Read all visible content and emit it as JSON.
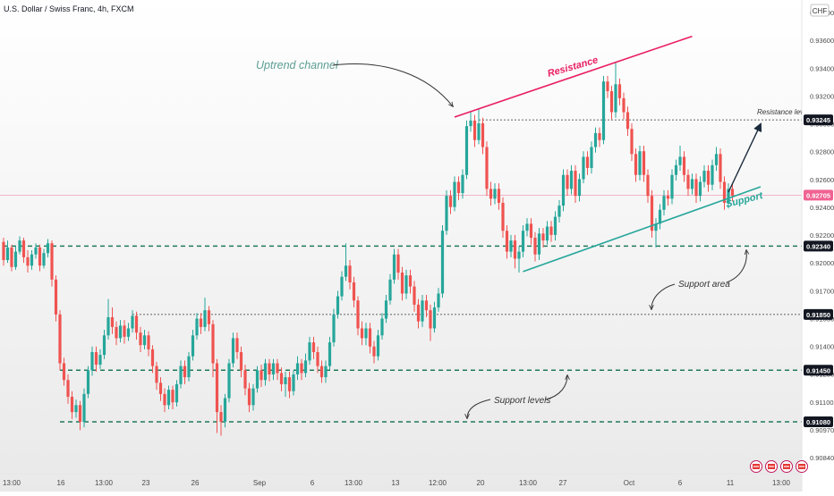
{
  "header": {
    "symbol": "U.S. Dollar / Swiss Franc, 4h, FXCM"
  },
  "currency_badge": "CHF",
  "colors": {
    "up": "#26a69a",
    "down": "#ef5350",
    "resistance": "#e91e63",
    "support": "#26a69a",
    "annotation": "#5b9e93",
    "level_line": "#1f7a5a",
    "last_price": "#f06292",
    "background_top": "#ffffff",
    "background_bottom": "#e9e9e9"
  },
  "toolbar_icons": [
    "flag-icon",
    "flag-icon",
    "flag-icon",
    "flag-icon"
  ],
  "chart_data": {
    "type": "candlestick",
    "symbol": "USDCHF",
    "timeframe": "4h",
    "ylim": [
      0.9076,
      0.9404
    ],
    "y_ticks": [
      "0.93800",
      "0.93600",
      "0.93400",
      "0.93200",
      "0.93000",
      "0.92800",
      "0.92600",
      "0.92400",
      "0.92200",
      "0.92000",
      "0.91700",
      "0.91550",
      "0.91400",
      "0.91250",
      "0.91100",
      "0.90970",
      "0.90840"
    ],
    "x_ticks": [
      "13:00",
      "16",
      "13:00",
      "23",
      "26",
      "Sep",
      "6",
      "13:00",
      "13",
      "12:00",
      "20",
      "13:00",
      "27",
      "Oct",
      "6",
      "11",
      "13:00"
    ],
    "price_labels": [
      {
        "value": 0.93245,
        "text": "0.93245",
        "kind": "level"
      },
      {
        "value": 0.92705,
        "text": "0.92705",
        "kind": "last"
      },
      {
        "value": 0.9234,
        "text": "0.92340",
        "kind": "level"
      },
      {
        "value": 0.9185,
        "text": "0.91850",
        "kind": "level"
      },
      {
        "value": 0.9145,
        "text": "0.91450",
        "kind": "level"
      },
      {
        "value": 0.9108,
        "text": "0.91080",
        "kind": "level"
      }
    ],
    "last_price": 0.92705,
    "horizontal_levels": [
      {
        "value": 0.9234,
        "style": "dashed-thick",
        "from_bar": 0
      },
      {
        "value": 0.9185,
        "style": "dotted",
        "from_bar": 32
      },
      {
        "value": 0.9145,
        "style": "dashed-thick",
        "from_bar": 14
      },
      {
        "value": 0.9108,
        "style": "dashed-thick",
        "from_bar": 14
      },
      {
        "value": 0.93245,
        "style": "dotted",
        "from_bar": 118
      }
    ],
    "trendlines": [
      {
        "name": "resistance",
        "from": [
          112,
          0.93265
        ],
        "to": [
          171,
          0.93844
        ]
      },
      {
        "name": "support",
        "from": [
          129,
          0.92157
        ],
        "to": [
          188,
          0.92765
        ]
      }
    ],
    "arrow": {
      "from": [
        180,
        0.92726
      ],
      "to": [
        188,
        0.93214
      ]
    },
    "annotations": {
      "channel": "Uptrend channel",
      "resistance": "Resistance",
      "support": "Support",
      "resistance_level": "Resistance level",
      "support_area": "Support area",
      "support_levels": "Support levels"
    },
    "candles": [
      [
        0.9237,
        0.9224,
        0.924,
        0.922
      ],
      [
        0.9224,
        0.9233,
        0.9238,
        0.9222
      ],
      [
        0.9233,
        0.9219,
        0.9235,
        0.9216
      ],
      [
        0.9219,
        0.923,
        0.9234,
        0.9217
      ],
      [
        0.923,
        0.9238,
        0.9241,
        0.9228
      ],
      [
        0.9238,
        0.9226,
        0.924,
        0.9222
      ],
      [
        0.9226,
        0.922,
        0.9231,
        0.9215
      ],
      [
        0.922,
        0.9228,
        0.9231,
        0.9217
      ],
      [
        0.9228,
        0.9233,
        0.9236,
        0.9225
      ],
      [
        0.9233,
        0.922,
        0.9235,
        0.9216
      ],
      [
        0.922,
        0.9229,
        0.9232,
        0.9218
      ],
      [
        0.9229,
        0.9236,
        0.9239,
        0.9226
      ],
      [
        0.9236,
        0.921,
        0.9238,
        0.9205
      ],
      [
        0.921,
        0.9185,
        0.9213,
        0.918
      ],
      [
        0.9185,
        0.915,
        0.9188,
        0.9145
      ],
      [
        0.915,
        0.9138,
        0.9154,
        0.9134
      ],
      [
        0.9138,
        0.9126,
        0.9142,
        0.9121
      ],
      [
        0.9126,
        0.9115,
        0.913,
        0.911
      ],
      [
        0.9115,
        0.912,
        0.9124,
        0.9111
      ],
      [
        0.912,
        0.9108,
        0.9123,
        0.9102
      ],
      [
        0.9108,
        0.9128,
        0.9132,
        0.9104
      ],
      [
        0.9128,
        0.9145,
        0.9148,
        0.9125
      ],
      [
        0.9145,
        0.9158,
        0.9162,
        0.9141
      ],
      [
        0.9158,
        0.9149,
        0.9162,
        0.9144
      ],
      [
        0.9149,
        0.9156,
        0.916,
        0.9146
      ],
      [
        0.9156,
        0.917,
        0.9174,
        0.9153
      ],
      [
        0.917,
        0.9183,
        0.9196,
        0.9167
      ],
      [
        0.9183,
        0.9176,
        0.919,
        0.9171
      ],
      [
        0.9176,
        0.9168,
        0.918,
        0.9163
      ],
      [
        0.9168,
        0.9177,
        0.9181,
        0.9165
      ],
      [
        0.9177,
        0.9169,
        0.9181,
        0.9164
      ],
      [
        0.9169,
        0.9175,
        0.9179,
        0.9166
      ],
      [
        0.9175,
        0.9184,
        0.9188,
        0.9172
      ],
      [
        0.9184,
        0.9172,
        0.9187,
        0.9167
      ],
      [
        0.9172,
        0.9163,
        0.9176,
        0.9158
      ],
      [
        0.9163,
        0.917,
        0.9174,
        0.916
      ],
      [
        0.917,
        0.916,
        0.9173,
        0.9155
      ],
      [
        0.916,
        0.9148,
        0.9163,
        0.9143
      ],
      [
        0.9148,
        0.9136,
        0.9151,
        0.9131
      ],
      [
        0.9136,
        0.9128,
        0.914,
        0.9123
      ],
      [
        0.9128,
        0.912,
        0.9132,
        0.9115
      ],
      [
        0.912,
        0.9131,
        0.9134,
        0.9117
      ],
      [
        0.9131,
        0.9122,
        0.9134,
        0.9117
      ],
      [
        0.9122,
        0.9135,
        0.9138,
        0.9119
      ],
      [
        0.9135,
        0.9148,
        0.9152,
        0.9132
      ],
      [
        0.9148,
        0.914,
        0.9152,
        0.9135
      ],
      [
        0.914,
        0.9155,
        0.9158,
        0.9137
      ],
      [
        0.9155,
        0.917,
        0.9174,
        0.9152
      ],
      [
        0.917,
        0.9182,
        0.9186,
        0.9167
      ],
      [
        0.9182,
        0.9176,
        0.9186,
        0.9171
      ],
      [
        0.9176,
        0.9188,
        0.9197,
        0.9173
      ],
      [
        0.9188,
        0.9178,
        0.9191,
        0.9173
      ],
      [
        0.9178,
        0.915,
        0.9181,
        0.914
      ],
      [
        0.915,
        0.9115,
        0.9153,
        0.91
      ],
      [
        0.9115,
        0.9108,
        0.912,
        0.9098
      ],
      [
        0.9108,
        0.9125,
        0.9128,
        0.9104
      ],
      [
        0.9125,
        0.915,
        0.9153,
        0.9122
      ],
      [
        0.915,
        0.9168,
        0.9172,
        0.9147
      ],
      [
        0.9168,
        0.9158,
        0.9172,
        0.9153
      ],
      [
        0.9158,
        0.9145,
        0.9162,
        0.914
      ],
      [
        0.9145,
        0.9132,
        0.9149,
        0.9127
      ],
      [
        0.9132,
        0.912,
        0.9136,
        0.9115
      ],
      [
        0.912,
        0.9132,
        0.9135,
        0.9116
      ],
      [
        0.9132,
        0.9145,
        0.9148,
        0.9129
      ],
      [
        0.9145,
        0.9138,
        0.9149,
        0.9133
      ],
      [
        0.9138,
        0.915,
        0.9153,
        0.9134
      ],
      [
        0.915,
        0.9142,
        0.9153,
        0.9137
      ],
      [
        0.9142,
        0.915,
        0.9153,
        0.9138
      ],
      [
        0.915,
        0.9143,
        0.9153,
        0.9138
      ],
      [
        0.9143,
        0.9135,
        0.9147,
        0.913
      ],
      [
        0.9135,
        0.914,
        0.9144,
        0.9126
      ],
      [
        0.914,
        0.913,
        0.9144,
        0.9125
      ],
      [
        0.913,
        0.9142,
        0.9145,
        0.9127
      ],
      [
        0.9142,
        0.915,
        0.9155,
        0.9138
      ],
      [
        0.915,
        0.9143,
        0.9153,
        0.9138
      ],
      [
        0.9143,
        0.9152,
        0.9157,
        0.914
      ],
      [
        0.9152,
        0.9165,
        0.9169,
        0.9149
      ],
      [
        0.9165,
        0.9158,
        0.9169,
        0.9153
      ],
      [
        0.9158,
        0.9148,
        0.9162,
        0.9143
      ],
      [
        0.9148,
        0.914,
        0.9152,
        0.9136
      ],
      [
        0.914,
        0.9148,
        0.9152,
        0.9136
      ],
      [
        0.9148,
        0.9165,
        0.9169,
        0.9145
      ],
      [
        0.9165,
        0.9185,
        0.9189,
        0.9162
      ],
      [
        0.9185,
        0.9198,
        0.9202,
        0.9182
      ],
      [
        0.9198,
        0.9212,
        0.9216,
        0.9195
      ],
      [
        0.9212,
        0.922,
        0.9236,
        0.9209
      ],
      [
        0.922,
        0.9208,
        0.9224,
        0.9203
      ],
      [
        0.9208,
        0.9195,
        0.9212,
        0.919
      ],
      [
        0.9195,
        0.9175,
        0.9198,
        0.917
      ],
      [
        0.9175,
        0.9168,
        0.918,
        0.9163
      ],
      [
        0.9168,
        0.9175,
        0.9179,
        0.9163
      ],
      [
        0.9175,
        0.9162,
        0.9179,
        0.9157
      ],
      [
        0.9162,
        0.9155,
        0.9166,
        0.915
      ],
      [
        0.9155,
        0.917,
        0.9174,
        0.9152
      ],
      [
        0.917,
        0.9182,
        0.9186,
        0.9167
      ],
      [
        0.9182,
        0.9195,
        0.9199,
        0.9179
      ],
      [
        0.9195,
        0.921,
        0.9214,
        0.9192
      ],
      [
        0.921,
        0.9228,
        0.9232,
        0.9207
      ],
      [
        0.9228,
        0.9215,
        0.9232,
        0.921
      ],
      [
        0.9215,
        0.92,
        0.9219,
        0.9195
      ],
      [
        0.92,
        0.9213,
        0.9217,
        0.9196
      ],
      [
        0.9213,
        0.9205,
        0.9217,
        0.92
      ],
      [
        0.9205,
        0.9192,
        0.9209,
        0.9187
      ],
      [
        0.9192,
        0.918,
        0.9196,
        0.9175
      ],
      [
        0.918,
        0.9195,
        0.9199,
        0.9176
      ],
      [
        0.9195,
        0.9188,
        0.9199,
        0.9183
      ],
      [
        0.9188,
        0.9175,
        0.9192,
        0.9166
      ],
      [
        0.9175,
        0.919,
        0.9194,
        0.9172
      ],
      [
        0.919,
        0.92,
        0.9204,
        0.9187
      ],
      [
        0.92,
        0.9245,
        0.9249,
        0.9197
      ],
      [
        0.9245,
        0.927,
        0.9274,
        0.9242
      ],
      [
        0.927,
        0.9262,
        0.9274,
        0.9257
      ],
      [
        0.9262,
        0.928,
        0.9284,
        0.9259
      ],
      [
        0.928,
        0.9272,
        0.9284,
        0.9267
      ],
      [
        0.9272,
        0.9285,
        0.9289,
        0.9268
      ],
      [
        0.9285,
        0.932,
        0.9324,
        0.9282
      ],
      [
        0.932,
        0.9324,
        0.933,
        0.9316
      ],
      [
        0.9324,
        0.931,
        0.9328,
        0.9305
      ],
      [
        0.931,
        0.9322,
        0.9333,
        0.9307
      ],
      [
        0.9322,
        0.9305,
        0.9326,
        0.93
      ],
      [
        0.9305,
        0.9275,
        0.9309,
        0.927
      ],
      [
        0.9275,
        0.9268,
        0.928,
        0.9263
      ],
      [
        0.9268,
        0.9275,
        0.9279,
        0.9264
      ],
      [
        0.9275,
        0.9265,
        0.9279,
        0.926
      ],
      [
        0.9265,
        0.9245,
        0.9269,
        0.924
      ],
      [
        0.9245,
        0.923,
        0.9249,
        0.9225
      ],
      [
        0.923,
        0.9238,
        0.9242,
        0.9226
      ],
      [
        0.9238,
        0.9225,
        0.9242,
        0.9218
      ],
      [
        0.9225,
        0.923,
        0.9234,
        0.9215
      ],
      [
        0.923,
        0.9245,
        0.9249,
        0.9226
      ],
      [
        0.9245,
        0.925,
        0.9254,
        0.9241
      ],
      [
        0.925,
        0.924,
        0.9254,
        0.9235
      ],
      [
        0.924,
        0.9228,
        0.9244,
        0.9223
      ],
      [
        0.9228,
        0.9243,
        0.9247,
        0.9224
      ],
      [
        0.9243,
        0.9238,
        0.9247,
        0.9233
      ],
      [
        0.9238,
        0.9248,
        0.9252,
        0.9235
      ],
      [
        0.9248,
        0.9242,
        0.9252,
        0.9237
      ],
      [
        0.9242,
        0.9255,
        0.9259,
        0.9238
      ],
      [
        0.9255,
        0.9263,
        0.9267,
        0.9251
      ],
      [
        0.9263,
        0.9285,
        0.9289,
        0.9259
      ],
      [
        0.9285,
        0.9275,
        0.9289,
        0.927
      ],
      [
        0.9275,
        0.9288,
        0.9292,
        0.9271
      ],
      [
        0.9288,
        0.927,
        0.9292,
        0.9265
      ],
      [
        0.927,
        0.9282,
        0.9286,
        0.9266
      ],
      [
        0.9282,
        0.9298,
        0.9302,
        0.9279
      ],
      [
        0.9298,
        0.929,
        0.9302,
        0.9285
      ],
      [
        0.929,
        0.9305,
        0.9309,
        0.9286
      ],
      [
        0.9305,
        0.9315,
        0.9319,
        0.9301
      ],
      [
        0.9315,
        0.931,
        0.9319,
        0.9305
      ],
      [
        0.931,
        0.9352,
        0.9356,
        0.9307
      ],
      [
        0.9352,
        0.9345,
        0.9356,
        0.934
      ],
      [
        0.9345,
        0.933,
        0.9349,
        0.9325
      ],
      [
        0.933,
        0.935,
        0.9366,
        0.9326
      ],
      [
        0.935,
        0.934,
        0.9354,
        0.9335
      ],
      [
        0.934,
        0.933,
        0.9344,
        0.9325
      ],
      [
        0.933,
        0.9318,
        0.9334,
        0.9313
      ],
      [
        0.9318,
        0.93,
        0.9322,
        0.9295
      ],
      [
        0.93,
        0.9285,
        0.9304,
        0.928
      ],
      [
        0.9285,
        0.9302,
        0.9306,
        0.9281
      ],
      [
        0.9302,
        0.9285,
        0.9306,
        0.928
      ],
      [
        0.9285,
        0.927,
        0.9289,
        0.9265
      ],
      [
        0.927,
        0.9245,
        0.9274,
        0.924
      ],
      [
        0.9245,
        0.925,
        0.9254,
        0.9233
      ],
      [
        0.925,
        0.926,
        0.9264,
        0.9246
      ],
      [
        0.926,
        0.927,
        0.9274,
        0.9256
      ],
      [
        0.927,
        0.9268,
        0.9274,
        0.9263
      ],
      [
        0.9268,
        0.9285,
        0.9289,
        0.9264
      ],
      [
        0.9285,
        0.9292,
        0.9296,
        0.9281
      ],
      [
        0.9292,
        0.9298,
        0.9306,
        0.9288
      ],
      [
        0.9298,
        0.9285,
        0.9302,
        0.928
      ],
      [
        0.9285,
        0.9275,
        0.9289,
        0.927
      ],
      [
        0.9275,
        0.9282,
        0.9286,
        0.9271
      ],
      [
        0.9282,
        0.927,
        0.9286,
        0.9265
      ],
      [
        0.927,
        0.928,
        0.9284,
        0.9266
      ],
      [
        0.928,
        0.9288,
        0.9292,
        0.9276
      ],
      [
        0.9288,
        0.9278,
        0.9292,
        0.9273
      ],
      [
        0.9278,
        0.9292,
        0.9296,
        0.9274
      ],
      [
        0.9292,
        0.93,
        0.9305,
        0.9288
      ],
      [
        0.93,
        0.928,
        0.9304,
        0.9275
      ],
      [
        0.928,
        0.9265,
        0.9284,
        0.926
      ],
      [
        0.9265,
        0.9275,
        0.9279,
        0.9261
      ],
      [
        0.9275,
        0.927,
        0.9279,
        0.9266
      ]
    ]
  }
}
